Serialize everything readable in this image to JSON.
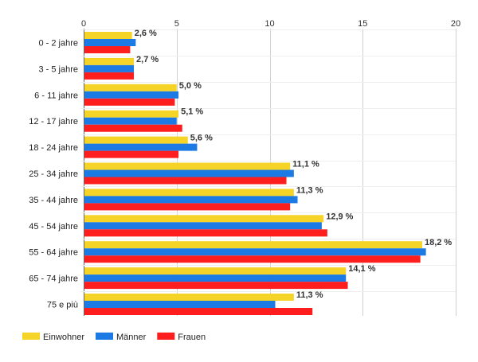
{
  "chart_data": {
    "type": "bar",
    "orientation": "horizontal",
    "categories": [
      "0 - 2 jahre",
      "3 - 5 jahre",
      "6 - 11 jahre",
      "12 - 17 jahre",
      "18 - 24 jahre",
      "25 - 34 jahre",
      "35 - 44 jahre",
      "45 - 54 jahre",
      "55 - 64 jahre",
      "65 - 74 jahre",
      "75 e più"
    ],
    "series": [
      {
        "name": "Einwohner",
        "color": "#f5d327",
        "values": [
          2.6,
          2.7,
          5.0,
          5.1,
          5.6,
          11.1,
          11.3,
          12.9,
          18.2,
          14.1,
          11.3
        ]
      },
      {
        "name": "Männer",
        "color": "#1c7ae4",
        "values": [
          2.8,
          2.7,
          5.1,
          5.0,
          6.1,
          11.3,
          11.5,
          12.8,
          18.4,
          14.1,
          10.3
        ]
      },
      {
        "name": "Frauen",
        "color": "#ff1e1e",
        "values": [
          2.5,
          2.7,
          4.9,
          5.3,
          5.1,
          10.9,
          11.1,
          13.1,
          18.1,
          14.2,
          12.3
        ]
      }
    ],
    "data_labels": [
      "2,6 %",
      "2,7 %",
      "5,0 %",
      "5,1 %",
      "5,6 %",
      "11,1 %",
      "11,3 %",
      "12,9 %",
      "18,2 %",
      "14,1 %",
      "11,3 %"
    ],
    "x_ticks": [
      0,
      5,
      10,
      15,
      20
    ],
    "xlim": [
      0,
      20
    ],
    "axis_position": "top",
    "grid": true,
    "legend_position": "bottom-left"
  }
}
